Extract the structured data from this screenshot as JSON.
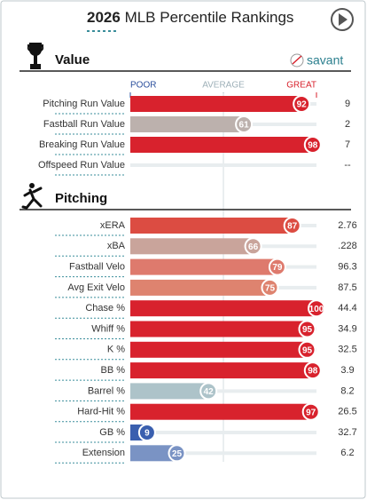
{
  "season": "2026",
  "title": "MLB Percentile Rankings",
  "brand": "savant",
  "chart_data": [
    {
      "type": "bar",
      "title": "Value",
      "xlim": [
        0,
        100
      ],
      "xticks": [
        {
          "value": 0,
          "label": "POOR"
        },
        {
          "value": 50,
          "label": "AVERAGE"
        },
        {
          "value": 100,
          "label": "GREAT"
        }
      ],
      "categories": [
        "Pitching Run Value",
        "Fastball Run Value",
        "Breaking Run Value",
        "Offspeed Run Value"
      ],
      "values": [
        92,
        61,
        98,
        null
      ],
      "colors": [
        "#d8222d",
        "#bcb1ad",
        "#d8222d",
        null
      ],
      "stats": [
        "9",
        "2",
        "7",
        "--"
      ]
    },
    {
      "type": "bar",
      "title": "Pitching",
      "xlim": [
        0,
        100
      ],
      "categories": [
        "xERA",
        "xBA",
        "Fastball Velo",
        "Avg Exit Velo",
        "Chase %",
        "Whiff %",
        "K %",
        "BB %",
        "Barrel %",
        "Hard-Hit %",
        "GB %",
        "Extension"
      ],
      "values": [
        87,
        66,
        79,
        75,
        100,
        95,
        95,
        98,
        42,
        97,
        9,
        25
      ],
      "colors": [
        "#dc4c42",
        "#c9a49b",
        "#de7a6d",
        "#de836f",
        "#d8222d",
        "#d8222d",
        "#d8222d",
        "#d8222d",
        "#adc3c9",
        "#d8222d",
        "#3a5faf",
        "#7a93c4"
      ],
      "stats": [
        "2.76",
        ".228",
        "96.3",
        "87.5",
        "44.4",
        "34.9",
        "32.5",
        "3.9",
        "8.2",
        "26.5",
        "32.7",
        "6.2"
      ]
    }
  ]
}
